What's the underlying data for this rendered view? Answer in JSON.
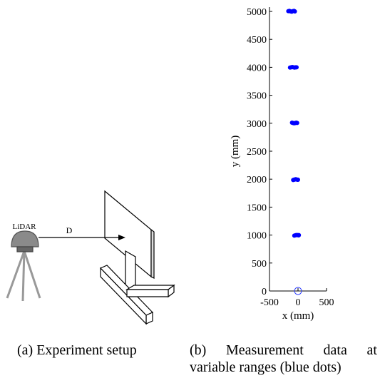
{
  "diagram": {
    "sensor_label": "LiDAR",
    "distance_label": "D"
  },
  "captions": [
    "(a) Experiment setup",
    "(b) Measurement data at variable ranges (blue dots)"
  ],
  "chart_data": {
    "type": "scatter",
    "xlabel": "x (mm)",
    "ylabel": "y (mm)",
    "xlim": [
      -500,
      500
    ],
    "xticks": [
      -500,
      0,
      500
    ],
    "ylim": [
      0,
      5000
    ],
    "yticks": [
      0,
      500,
      1000,
      1500,
      2000,
      2500,
      3000,
      3500,
      4000,
      4500,
      5000
    ],
    "series": [
      {
        "color": "#0000ff",
        "filled": true,
        "x": [
          -170,
          -150,
          -130,
          -110,
          -90,
          -70,
          -55,
          -140,
          -120,
          -100,
          -80,
          -60,
          -40,
          -25,
          -105,
          -90,
          -75,
          -60,
          -45,
          -30,
          -15,
          -85,
          -70,
          -55,
          -40,
          -25,
          -10,
          0,
          -65,
          -50,
          -35,
          -20,
          -5,
          10,
          15
        ],
        "values": [
          5005,
          5010,
          5000,
          4995,
          5005,
          5010,
          5000,
          3995,
          4000,
          4005,
          4000,
          3995,
          4000,
          4000,
          3010,
          3005,
          3000,
          3000,
          3005,
          3010,
          3005,
          1985,
          1990,
          1995,
          2000,
          1995,
          1990,
          1990,
          990,
          995,
          1000,
          1000,
          1000,
          995,
          1000
        ]
      },
      {
        "color": "#3344ff",
        "filled": false,
        "x": [
          0
        ],
        "values": [
          0
        ]
      }
    ]
  }
}
